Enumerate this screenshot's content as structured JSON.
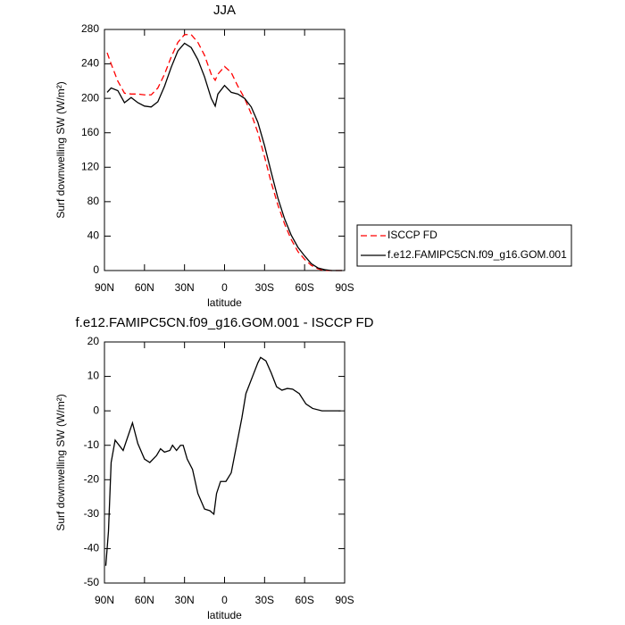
{
  "chart_data": [
    {
      "type": "line",
      "title": "JJA",
      "x_label": "latitude",
      "y_label": "Surf downwelling SW (W/m²)",
      "x": [
        88,
        85,
        80,
        75,
        70,
        65,
        60,
        55,
        50,
        45,
        40,
        35,
        30,
        25,
        20,
        15,
        10,
        7,
        5,
        0,
        -5,
        -10,
        -15,
        -20,
        -25,
        -30,
        -35,
        -40,
        -45,
        -50,
        -55,
        -60,
        -65,
        -70,
        -75,
        -80,
        -85,
        -88
      ],
      "series": [
        {
          "name": "ISCCP FD",
          "color": "#ff0000",
          "dash": "dashed",
          "values": [
            253,
            240,
            220,
            206,
            205,
            205,
            204,
            204,
            212,
            228,
            248,
            265,
            274,
            274,
            265,
            250,
            228,
            221,
            228,
            237,
            230,
            214,
            200,
            182,
            160,
            132,
            102,
            76,
            54,
            36,
            22,
            13,
            6,
            2,
            0,
            0,
            0,
            0
          ]
        },
        {
          "name": "f.e12.FAMIPC5CN.f09_g16.GOM.001",
          "color": "#000000",
          "dash": "solid",
          "values": [
            207,
            212,
            209,
            195,
            201,
            195,
            191,
            190,
            196,
            214,
            236,
            255,
            264,
            259,
            245,
            225,
            200,
            191,
            205,
            215,
            207,
            205,
            200,
            190,
            172,
            145,
            114,
            84,
            60,
            41,
            27,
            17,
            8,
            3,
            1,
            0,
            0,
            0
          ]
        }
      ],
      "xlim": [
        90,
        -90
      ],
      "xticks": [
        {
          "value": 90,
          "label": "90N"
        },
        {
          "value": 60,
          "label": "60N"
        },
        {
          "value": 30,
          "label": "30N"
        },
        0,
        {
          "value": -30,
          "label": "30S"
        },
        {
          "value": -60,
          "label": "60S"
        },
        {
          "value": -90,
          "label": "90S"
        }
      ],
      "ylim": [
        0,
        280
      ],
      "yticks": [
        0,
        40,
        80,
        120,
        160,
        200,
        240,
        280
      ],
      "legend": "right"
    },
    {
      "type": "line",
      "title": "f.e12.FAMIPC5CN.f09_g16.GOM.001 - ISCCP FD",
      "x_label": "latitude",
      "y_label": "Surf downwelling SW (W/m²)",
      "x": [
        89,
        87,
        85,
        82,
        76,
        69,
        65,
        60,
        56,
        51,
        48,
        45,
        41,
        39,
        36,
        33,
        31,
        28,
        24,
        20,
        15,
        11,
        8,
        6,
        3,
        -1,
        -5,
        -9,
        -13,
        -16,
        -21,
        -25,
        -27,
        -31,
        -35,
        -39,
        -43,
        -47,
        -51,
        -56,
        -61,
        -66,
        -73,
        -87
      ],
      "values": [
        -45,
        -35,
        -15,
        -8.5,
        -11.5,
        -3.5,
        -9.5,
        -14,
        -15,
        -13,
        -11,
        -12,
        -11.5,
        -10,
        -11.5,
        -10,
        -10,
        -14,
        -17,
        -24,
        -28.5,
        -29,
        -30,
        -24,
        -20.5,
        -20.5,
        -18,
        -10,
        -2,
        5,
        10,
        14,
        15.5,
        14.5,
        11,
        7,
        6,
        6.5,
        6.3,
        5,
        2,
        0.7,
        0,
        0
      ],
      "color": "#000000",
      "xlim": [
        90,
        -90
      ],
      "xticks": [
        {
          "value": 90,
          "label": "90N"
        },
        {
          "value": 60,
          "label": "60N"
        },
        {
          "value": 30,
          "label": "30N"
        },
        0,
        {
          "value": -30,
          "label": "30S"
        },
        {
          "value": -60,
          "label": "60S"
        },
        {
          "value": -90,
          "label": "90S"
        }
      ],
      "ylim": [
        -50,
        20
      ],
      "yticks": [
        -50,
        -40,
        -30,
        -20,
        -10,
        0,
        10,
        20
      ]
    }
  ]
}
